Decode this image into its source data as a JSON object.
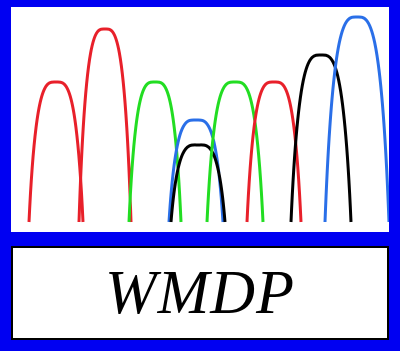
{
  "label": "WMDP",
  "colors": {
    "background": "#0000f2",
    "panel": "#ffffff",
    "red": "#e8202a",
    "green": "#22dd22",
    "blue": "#2a6fe8",
    "black": "#000000"
  },
  "peaks": [
    {
      "color": "red"
    },
    {
      "color": "red"
    },
    {
      "color": "green"
    },
    {
      "color": "blue"
    },
    {
      "color": "black"
    },
    {
      "color": "green"
    },
    {
      "color": "red"
    },
    {
      "color": "black"
    },
    {
      "color": "blue"
    }
  ]
}
